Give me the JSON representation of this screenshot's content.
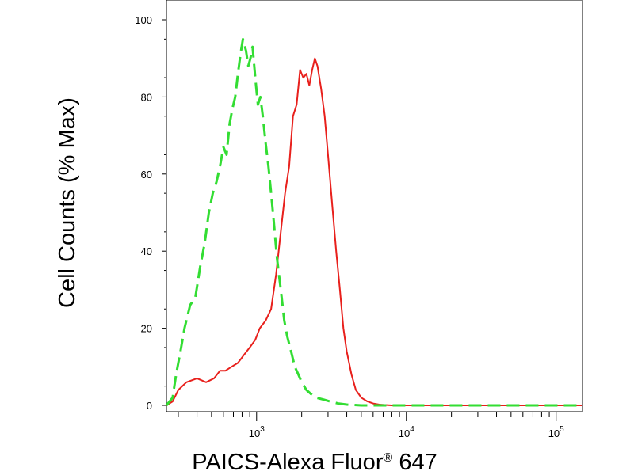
{
  "chart_data": {
    "type": "line",
    "title": "",
    "xlabel": "PAICS-Alexa Fluor",
    "xlabel_mark": "®",
    "xlabel_suffix": " 647",
    "ylabel": "Cell Counts (% Max)",
    "x_scale": "log",
    "xlim": [
      250,
      150000
    ],
    "ylim": [
      0,
      100
    ],
    "y_ticks": [
      0,
      20,
      40,
      60,
      80,
      100
    ],
    "x_major_ticks": [
      1000,
      10000,
      100000
    ],
    "x_tick_labels": [
      {
        "base": "10",
        "exp": "3"
      },
      {
        "base": "10",
        "exp": "4"
      },
      {
        "base": "10",
        "exp": "5"
      }
    ],
    "grid": false,
    "legend": "none",
    "series": [
      {
        "color": "#e8201c",
        "style": "solid",
        "x": [
          250,
          275,
          300,
          340,
          400,
          460,
          520,
          570,
          620,
          680,
          750,
          820,
          900,
          980,
          1050,
          1150,
          1250,
          1350,
          1450,
          1550,
          1650,
          1750,
          1850,
          1950,
          2050,
          2150,
          2250,
          2350,
          2450,
          2550,
          2700,
          2850,
          3000,
          3200,
          3400,
          3600,
          3800,
          4000,
          4300,
          4600,
          5000,
          5500,
          6000,
          6600,
          7200,
          8000,
          9000,
          10000,
          12000,
          20000,
          50000,
          100000,
          150000
        ],
        "y": [
          0,
          1,
          4,
          6,
          7,
          6,
          7,
          9,
          9,
          10,
          11,
          13,
          15,
          17,
          20,
          22,
          25,
          34,
          45,
          55,
          62,
          75,
          78,
          87,
          85,
          86,
          83,
          87,
          90,
          88,
          82,
          75,
          65,
          52,
          40,
          30,
          20,
          14,
          8,
          4,
          2,
          1,
          0.5,
          0.2,
          0.1,
          0,
          0,
          0,
          0,
          0,
          0,
          0,
          0
        ]
      },
      {
        "color": "#33dd33",
        "style": "dashed",
        "x": [
          250,
          275,
          290,
          310,
          330,
          360,
          390,
          420,
          450,
          480,
          510,
          540,
          570,
          600,
          630,
          660,
          690,
          720,
          750,
          780,
          810,
          850,
          880,
          910,
          940,
          980,
          1020,
          1060,
          1100,
          1150,
          1200,
          1250,
          1300,
          1370,
          1450,
          1530,
          1600,
          1700,
          1800,
          1900,
          2000,
          2150,
          2300,
          2500,
          2800,
          3100,
          3500,
          4000,
          4500,
          5000,
          6000,
          8000,
          10000,
          20000,
          50000,
          100000,
          150000
        ],
        "y": [
          0,
          2,
          8,
          14,
          20,
          26,
          28,
          36,
          42,
          50,
          55,
          58,
          62,
          67,
          65,
          73,
          77,
          80,
          86,
          91,
          95,
          92,
          88,
          90,
          93,
          85,
          78,
          80,
          75,
          68,
          62,
          55,
          48,
          38,
          30,
          22,
          18,
          14,
          10,
          8,
          6,
          4,
          3,
          2,
          1.5,
          1,
          0.5,
          0.2,
          0.1,
          0,
          0,
          0,
          0,
          0,
          0,
          0,
          0
        ]
      }
    ]
  }
}
